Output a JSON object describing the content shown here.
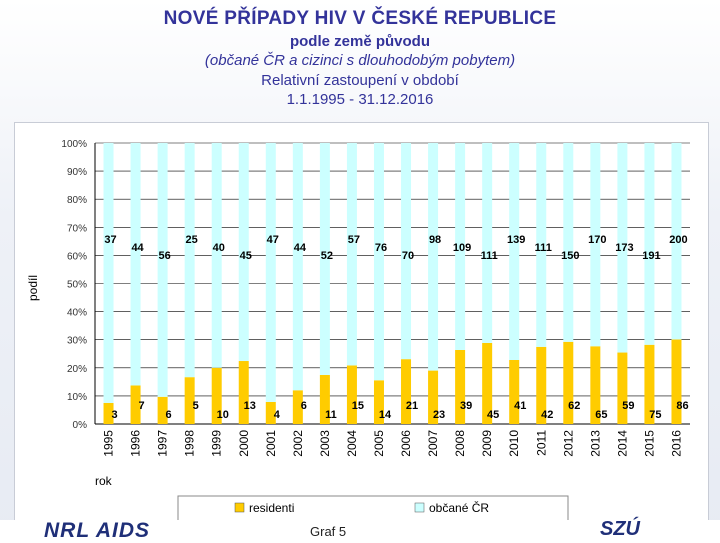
{
  "header": {
    "title": "NOVÉ PŘÍPADY HIV V ČESKÉ REPUBLICE",
    "subtitle": "podle země původu",
    "note": "(občané ČR a cizinci s dlouhodobým pobytem)",
    "line3": "Relativní zastoupení v období",
    "period": "1.1.1995 - 31.12.2016"
  },
  "chart_data": {
    "type": "bar",
    "stacked": true,
    "normalized": true,
    "categories": [
      "1995",
      "1996",
      "1997",
      "1998",
      "1999",
      "2000",
      "2001",
      "2002",
      "2003",
      "2004",
      "2005",
      "2006",
      "2007",
      "2008",
      "2009",
      "2010",
      "2011",
      "2012",
      "2013",
      "2014",
      "2015",
      "2016"
    ],
    "series": [
      {
        "name": "residenti",
        "color": "#ffcc00",
        "values": [
          3,
          7,
          6,
          5,
          10,
          13,
          4,
          6,
          11,
          15,
          14,
          21,
          23,
          39,
          45,
          41,
          42,
          62,
          65,
          59,
          75,
          86
        ]
      },
      {
        "name": "občané ČR",
        "color": "#ccffff",
        "values": [
          37,
          44,
          56,
          25,
          40,
          45,
          47,
          44,
          52,
          57,
          76,
          70,
          98,
          109,
          111,
          139,
          111,
          150,
          170,
          173,
          191,
          200
        ]
      }
    ],
    "ylim": [
      0,
      100
    ],
    "yticks": [
      "0%",
      "10%",
      "20%",
      "30%",
      "40%",
      "50%",
      "60%",
      "70%",
      "80%",
      "90%",
      "100%"
    ],
    "ylabel": "podíl",
    "xlabel": "rok",
    "legend_position": "bottom"
  },
  "footer": {
    "logo_left": "NRL AIDS",
    "caption": "Graf 5",
    "logo_right": "SZÚ"
  }
}
